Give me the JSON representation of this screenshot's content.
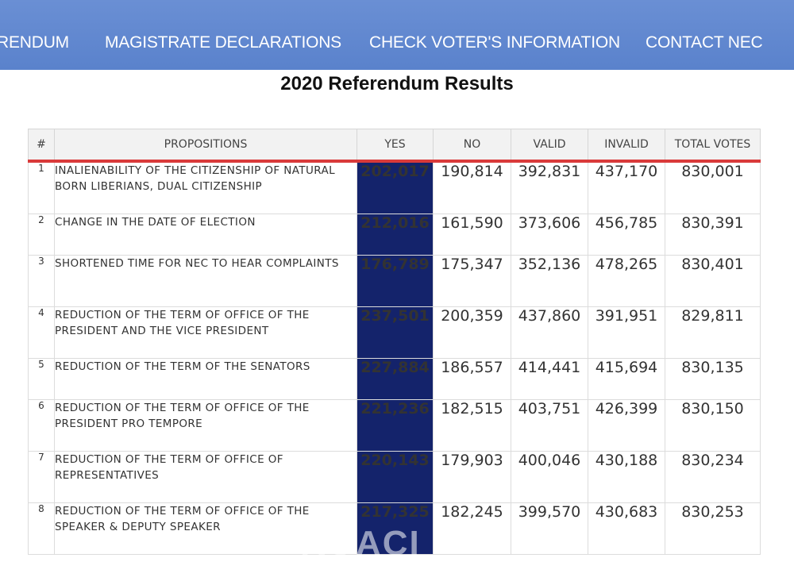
{
  "nav": {
    "items": [
      "RENDUM",
      "MAGISTRATE DECLARATIONS",
      "CHECK VOTER'S INFORMATION",
      "CONTACT NEC"
    ]
  },
  "page": {
    "title": "2020 Referendum Results"
  },
  "table": {
    "headers": [
      "#",
      "PROPOSITIONS",
      "YES",
      "NO",
      "VALID",
      "INVALID",
      "TOTAL VOTES"
    ],
    "rows": [
      {
        "num": "1",
        "proposition": "INALIENABILITY OF THE CITIZENSHIP OF NATURAL BORN LIBERIANS, DUAL CITIZENSHIP",
        "yes": "202,017",
        "no": "190,814",
        "valid": "392,831",
        "invalid": "437,170",
        "total": "830,001"
      },
      {
        "num": "2",
        "proposition": "CHANGE IN THE DATE OF ELECTION",
        "yes": "212,016",
        "no": "161,590",
        "valid": "373,606",
        "invalid": "456,785",
        "total": "830,391"
      },
      {
        "num": "3",
        "proposition": "SHORTENED TIME FOR NEC TO HEAR COMPLAINTS",
        "yes": "176,789",
        "no": "175,347",
        "valid": "352,136",
        "invalid": "478,265",
        "total": "830,401"
      },
      {
        "num": "4",
        "proposition": "REDUCTION OF THE TERM OF OFFICE OF THE PRESIDENT AND THE VICE PRESIDENT",
        "yes": "237,501",
        "no": "200,359",
        "valid": "437,860",
        "invalid": "391,951",
        "total": "829,811"
      },
      {
        "num": "5",
        "proposition": "REDUCTION OF THE TERM OF THE SENATORS",
        "yes": "227,884",
        "no": "186,557",
        "valid": "414,441",
        "invalid": "415,694",
        "total": "830,135"
      },
      {
        "num": "6",
        "proposition": "REDUCTION OF THE TERM OF OFFICE OF THE PRESIDENT PRO TEMPORE",
        "yes": "221,236",
        "no": "182,515",
        "valid": "403,751",
        "invalid": "426,399",
        "total": "830,150"
      },
      {
        "num": "7",
        "proposition": "REDUCTION OF THE TERM OF OFFICE OF REPRESENTATIVES",
        "yes": "220,143",
        "no": "179,903",
        "valid": "400,046",
        "invalid": "430,188",
        "total": "830,234"
      },
      {
        "num": "8",
        "proposition": "REDUCTION OF THE TERM OF OFFICE OF THE SPEAKER & DEPUTY SPEAKER",
        "yes": "217,325",
        "no": "182,245",
        "valid": "399,570",
        "invalid": "430,683",
        "total": "830,253"
      }
    ]
  },
  "watermark": {
    "text": "KOACI"
  },
  "colors": {
    "nav_bg": "#5a82cc",
    "yes_bg": "#14236b",
    "header_accent": "#d93a3a"
  }
}
